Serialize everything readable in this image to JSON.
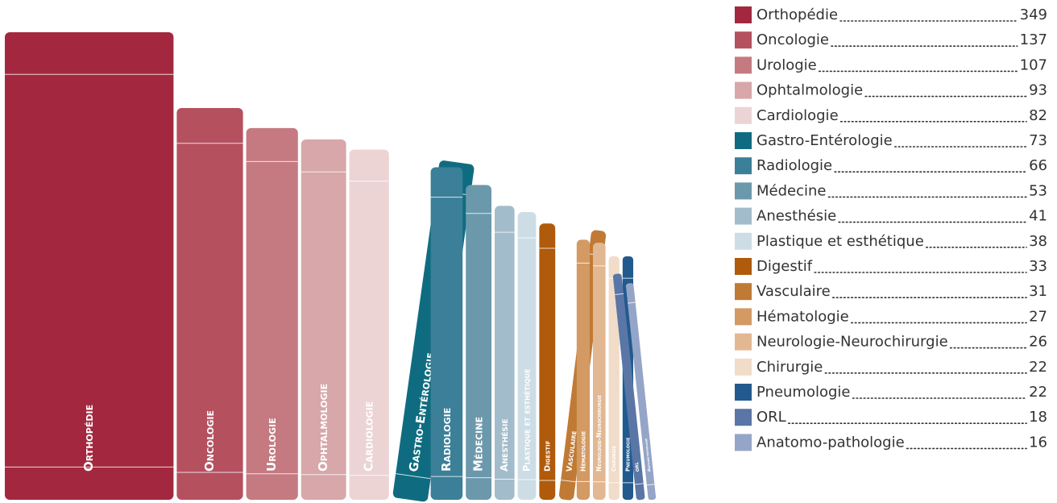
{
  "chart_data": {
    "type": "bookshelf",
    "categories": [
      "Orthopédie",
      "Oncologie",
      "Urologie",
      "Ophtalmologie",
      "Cardiologie",
      "Gastro-Entérologie",
      "Radiologie",
      "Médecine",
      "Anesthésie",
      "Plastique et esthétique",
      "Digestif",
      "Vasculaire",
      "Hématologie",
      "Neurologie-Neurochirurgie",
      "Chirurgie",
      "Pneumologie",
      "ORL",
      "Anatomo-pathologie"
    ],
    "values": [
      349,
      137,
      107,
      93,
      82,
      73,
      66,
      53,
      41,
      38,
      33,
      31,
      27,
      26,
      22,
      22,
      18,
      16
    ],
    "colors": [
      "#a3283f",
      "#b5505f",
      "#c47a80",
      "#d7a7aa",
      "#ecd4d5",
      "#0f6c80",
      "#3b7f98",
      "#6c98ac",
      "#a3bccb",
      "#cddde6",
      "#b05a0b",
      "#c07a35",
      "#d39a64",
      "#e2b892",
      "#f0dcc8",
      "#225a8e",
      "#5a76a6",
      "#95a5c8"
    ]
  }
}
